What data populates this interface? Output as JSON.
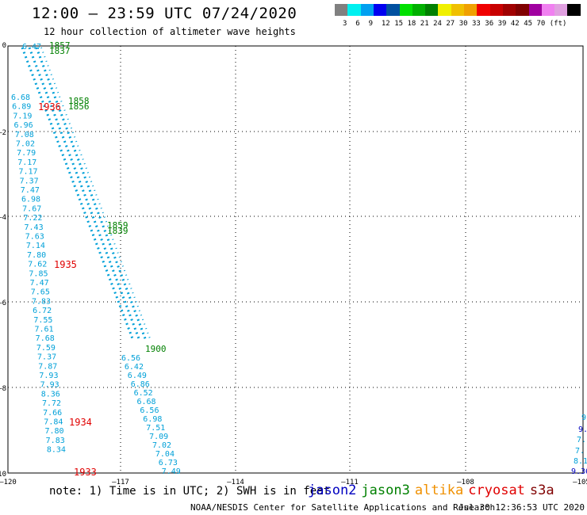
{
  "header": {
    "title": "12:00 – 23:59 UTC 07/24/2020",
    "subtitle": "12 hour collection of altimeter wave heights"
  },
  "legend": {
    "colors": [
      "#808080",
      "#00f0f0",
      "#00a0f0",
      "#0000f0",
      "#0050a0",
      "#00e000",
      "#00b000",
      "#008000",
      "#f0f000",
      "#f0c000",
      "#f0a000",
      "#f00000",
      "#c80000",
      "#a00000",
      "#800000",
      "#a000a0",
      "#f080f0",
      "#e0a0e0",
      "#000000"
    ],
    "labels": [
      "3",
      "6",
      "9",
      "12",
      "15",
      "18",
      "21",
      "24",
      "27",
      "30",
      "33",
      "36",
      "39",
      "42",
      "45",
      "70",
      "(ft)"
    ]
  },
  "axes": {
    "y_labels": [
      "0",
      "–2",
      "–4",
      "–6",
      "–8",
      "–10"
    ],
    "x_labels": [
      "–120",
      "–117",
      "–114",
      "–111",
      "–108",
      "–105"
    ]
  },
  "track_colors": {
    "cyan": "#00a0d8",
    "green": "#008000",
    "red": "#e00000",
    "blue": "#0000c0"
  },
  "swh_left_column": [
    "6.68",
    "6.89",
    "7.19",
    "6.96",
    "7.08",
    "7.02",
    "7.79",
    "7.17",
    "7.17",
    "7.37",
    "7.47",
    "6.98",
    "7.67",
    "7.22",
    "7.43",
    "7.63",
    "7.14",
    "7.80",
    "7.62",
    "7.85",
    "7.47",
    "7.65",
    "7.83",
    "6.72",
    "7.55",
    "7.61",
    "7.68",
    "7.59",
    "7.37",
    "7.87",
    "7.93",
    "7.93",
    "8.36",
    "7.72",
    "7.66",
    "7.84",
    "7.80",
    "7.83",
    "8.34"
  ],
  "swh_right_column": [
    "6.56",
    "6.42",
    "6.49",
    "6.86",
    "6.52",
    "6.68",
    "6.56",
    "6.98",
    "7.51",
    "7.09",
    "7.02",
    "7.04",
    "6.73",
    "7.49"
  ],
  "swh_top": [
    "6.47"
  ],
  "time_labels": {
    "green": [
      "1857",
      "1837",
      "1858",
      "1856",
      "1859",
      "1839",
      "1900"
    ],
    "red": [
      "1936",
      "1935",
      "1934",
      "1933"
    ]
  },
  "edge_values": [
    "9.36"
  ],
  "notes": {
    "note": "note:  1) Time is in UTC;  2) SWH is in feet",
    "satellites": [
      {
        "name": "jason2",
        "color": "#0000c0"
      },
      {
        "name": "jason3",
        "color": "#008000"
      },
      {
        "name": "altika",
        "color": "#f09000"
      },
      {
        "name": "cryosat",
        "color": "#e00000"
      },
      {
        "name": "s3a",
        "color": "#800000"
      }
    ],
    "credit": "NOAA/NESDIS Center for Satellite Applications and Research",
    "timestamp": "Jul 30 12:36:53 UTC 2020"
  }
}
